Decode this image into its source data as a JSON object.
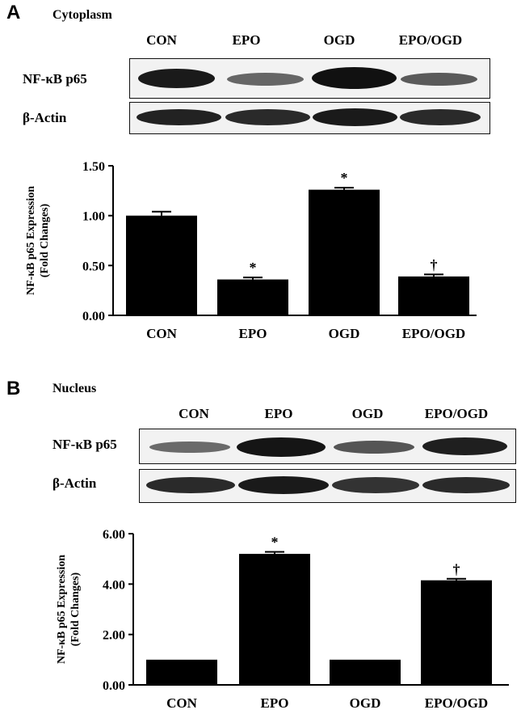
{
  "figure": {
    "panels": [
      {
        "letter": "A",
        "title": "Cytoplasm",
        "lanes": [
          "CON",
          "EPO",
          "OGD",
          "EPO/OGD"
        ],
        "rows": [
          "NF-κB p65",
          "β-Actin"
        ]
      },
      {
        "letter": "B",
        "title": "Nucleus",
        "lanes": [
          "CON",
          "EPO",
          "OGD",
          "EPO/OGD"
        ],
        "rows": [
          "NF-κB p65",
          "β-Actin"
        ]
      }
    ]
  },
  "chart_data": [
    {
      "type": "bar",
      "categories": [
        "CON",
        "EPO",
        "OGD",
        "EPO/OGD"
      ],
      "values": [
        1.0,
        0.36,
        1.26,
        0.39
      ],
      "errors": [
        0.04,
        0.02,
        0.02,
        0.02
      ],
      "markers": [
        "",
        "*",
        "*",
        "†"
      ],
      "ylabel": "NF-κB p65 Expression\n(Fold Changes)",
      "ylim": [
        0,
        1.5
      ],
      "yticks": [
        "0.00",
        "0.50",
        "1.00",
        "1.50"
      ],
      "ytick_values": [
        0,
        0.5,
        1.0,
        1.5
      ],
      "grid": false
    },
    {
      "type": "bar",
      "categories": [
        "CON",
        "EPO",
        "OGD",
        "EPO/OGD"
      ],
      "values": [
        1.0,
        5.2,
        1.0,
        4.15
      ],
      "errors": [
        0,
        0.08,
        0,
        0.06
      ],
      "markers": [
        "",
        "*",
        "",
        "†"
      ],
      "ylabel": "NF-κB p65 Expression\n(Fold Changes)",
      "ylim": [
        0,
        6.0
      ],
      "yticks": [
        "0.00",
        "2.00",
        "4.00",
        "6.00"
      ],
      "ytick_values": [
        0,
        2,
        4,
        6
      ],
      "grid": false
    }
  ]
}
